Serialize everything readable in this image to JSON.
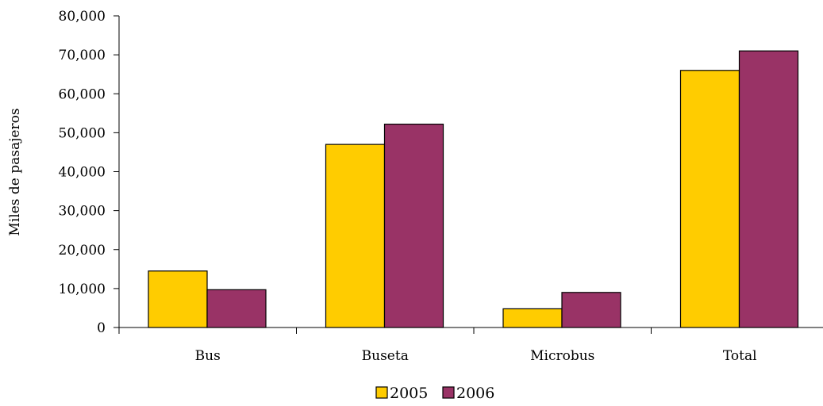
{
  "chart_data": {
    "type": "bar",
    "title": "",
    "xlabel": "",
    "ylabel": "Miles de pasajeros",
    "categories": [
      "Bus",
      "Buseta",
      "Microbus",
      "Total"
    ],
    "series": [
      {
        "name": "2005",
        "color": "#FFCC00",
        "values": [
          14500,
          47000,
          4800,
          66000
        ]
      },
      {
        "name": "2006",
        "color": "#993366",
        "values": [
          9700,
          52200,
          9000,
          71000
        ]
      }
    ],
    "ylim": [
      0,
      80000
    ],
    "yticks": [
      0,
      10000,
      20000,
      30000,
      40000,
      50000,
      60000,
      70000,
      80000
    ],
    "ytick_labels": [
      "0",
      "10,000",
      "20,000",
      "30,000",
      "40,000",
      "50,000",
      "60,000",
      "70,000",
      "80,000"
    ],
    "grid": false,
    "legend_position": "bottom-center"
  }
}
